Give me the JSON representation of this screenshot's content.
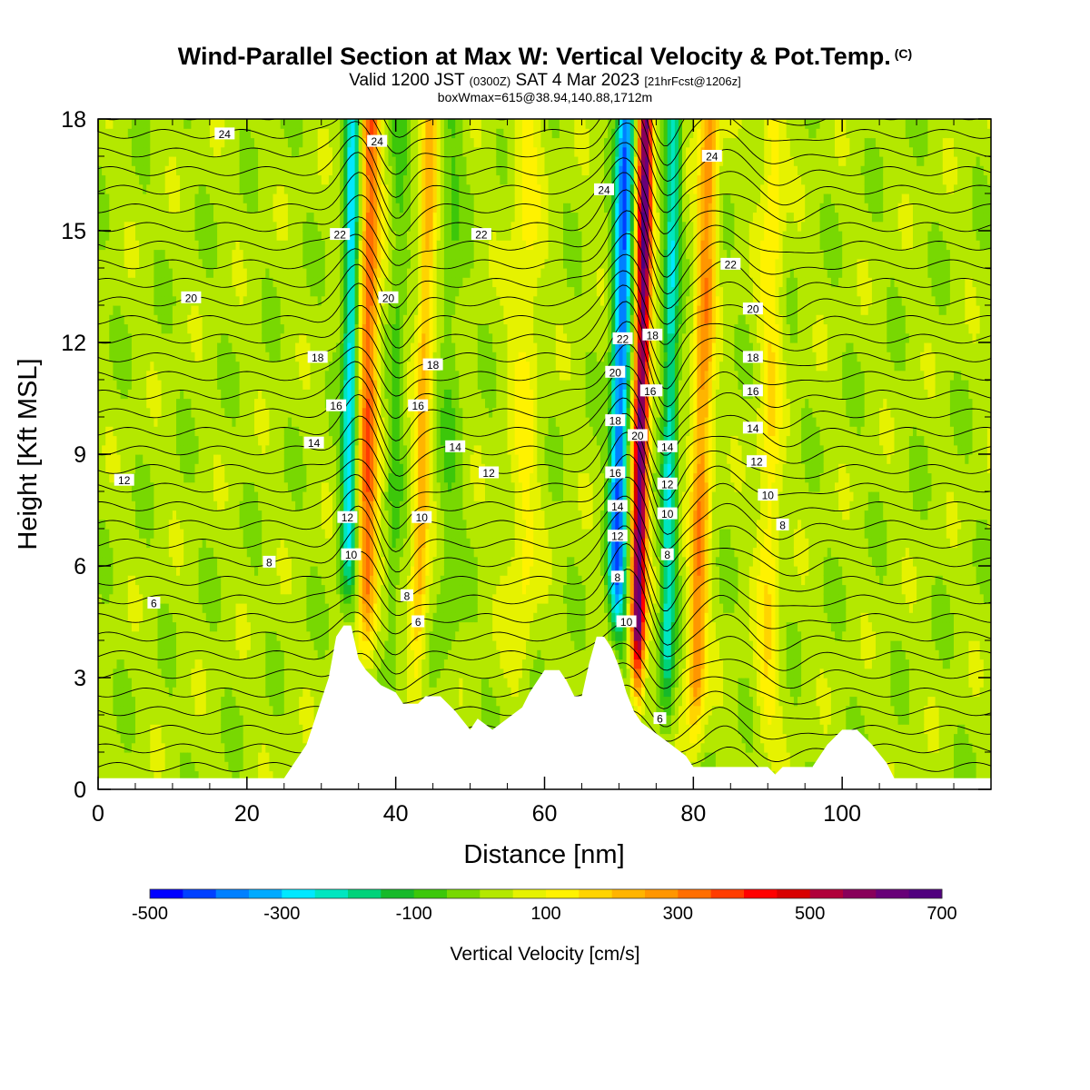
{
  "header": {
    "title": "Wind-Parallel Section at Max W: Vertical Velocity & Pot.Temp.",
    "copyright": "(C)",
    "valid_prefix": "Valid 1200 JST",
    "valid_utc": "(0300Z)",
    "valid_date": "SAT 4 Mar 2023",
    "forecast": "[21hrFcst@1206z]",
    "box": "boxWmax=615@38.94,140.88,1712m"
  },
  "chart_data": {
    "type": "heatmap",
    "xlabel": "Distance [nm]",
    "ylabel": "Height [Kft MSL]",
    "xlim": [
      0,
      120
    ],
    "ylim": [
      0,
      18
    ],
    "x_ticks": [
      "0",
      "20",
      "40",
      "60",
      "80",
      "100"
    ],
    "y_ticks": [
      "0",
      "3",
      "6",
      "9",
      "12",
      "15",
      "18"
    ],
    "colorbar": {
      "label": "Vertical Velocity [cm/s]",
      "min": -500,
      "max": 700,
      "step": 50,
      "tick_labels": [
        "-500",
        "-300",
        "-100",
        "100",
        "300",
        "500",
        "700"
      ],
      "colors": [
        "#0000ff",
        "#0040ff",
        "#0080ff",
        "#00aaff",
        "#00e8ff",
        "#00e6c0",
        "#00d27a",
        "#16b92a",
        "#3cc70a",
        "#78d802",
        "#b4e800",
        "#e6f200",
        "#fff200",
        "#ffd400",
        "#ffb400",
        "#ff9600",
        "#ff6e00",
        "#ff3c00",
        "#ff0000",
        "#d80000",
        "#b0003a",
        "#88005a",
        "#680078",
        "#50007e"
      ]
    },
    "terrain_kft": [
      [
        0,
        0.3
      ],
      [
        5,
        0.3
      ],
      [
        10,
        0.3
      ],
      [
        15,
        0.3
      ],
      [
        20,
        0.3
      ],
      [
        25,
        0.3
      ],
      [
        26,
        0.6
      ],
      [
        27,
        0.9
      ],
      [
        28,
        1.2
      ],
      [
        29,
        1.8
      ],
      [
        30,
        2.4
      ],
      [
        31,
        3.0
      ],
      [
        32,
        4.1
      ],
      [
        33,
        4.4
      ],
      [
        34,
        4.4
      ],
      [
        35,
        3.5
      ],
      [
        36,
        3.2
      ],
      [
        37,
        3.0
      ],
      [
        38,
        2.8
      ],
      [
        39,
        2.7
      ],
      [
        40,
        2.6
      ],
      [
        41,
        2.3
      ],
      [
        43,
        2.3
      ],
      [
        44,
        2.5
      ],
      [
        46,
        2.5
      ],
      [
        48,
        2.1
      ],
      [
        50,
        1.6
      ],
      [
        51,
        1.9
      ],
      [
        53,
        1.6
      ],
      [
        55,
        1.9
      ],
      [
        57,
        2.2
      ],
      [
        58,
        2.6
      ],
      [
        60,
        3.2
      ],
      [
        62,
        3.2
      ],
      [
        63,
        2.9
      ],
      [
        64,
        2.5
      ],
      [
        65,
        2.5
      ],
      [
        66,
        3.4
      ],
      [
        67,
        4.1
      ],
      [
        68,
        4.1
      ],
      [
        69,
        3.8
      ],
      [
        70,
        3.3
      ],
      [
        71,
        2.6
      ],
      [
        72,
        2.1
      ],
      [
        73,
        1.8
      ],
      [
        75,
        1.5
      ],
      [
        77,
        1.2
      ],
      [
        79,
        0.9
      ],
      [
        80,
        0.6
      ],
      [
        85,
        0.6
      ],
      [
        90,
        0.6
      ],
      [
        91,
        0.4
      ],
      [
        92,
        0.6
      ],
      [
        96,
        0.6
      ],
      [
        98,
        1.2
      ],
      [
        100,
        1.6
      ],
      [
        102,
        1.6
      ],
      [
        104,
        1.2
      ],
      [
        106,
        0.7
      ],
      [
        107,
        0.3
      ],
      [
        112,
        0.3
      ],
      [
        120,
        0.3
      ]
    ],
    "updraft_bands": [
      {
        "x_base": 36,
        "lean": 0.05,
        "half_width": 1.3,
        "peak_cm_s": 320
      },
      {
        "x_base": 43,
        "lean": 0.12,
        "half_width": 1.1,
        "peak_cm_s": 200
      },
      {
        "x_base": 72.5,
        "lean": 0.08,
        "half_width": 1.0,
        "peak_cm_s": 615
      },
      {
        "x_base": 80.5,
        "lean": 0.12,
        "half_width": 1.3,
        "peak_cm_s": 260
      },
      {
        "x_base": 90,
        "lean": 0.05,
        "half_width": 1.5,
        "peak_cm_s": 120
      },
      {
        "x_base": 57,
        "lean": 0.05,
        "half_width": 2.0,
        "peak_cm_s": 90
      }
    ],
    "downdraft_bands": [
      {
        "x_base": 33.5,
        "lean": 0.05,
        "half_width": 1.0,
        "peak_cm_s": -300
      },
      {
        "x_base": 69.5,
        "lean": 0.1,
        "half_width": 1.2,
        "peak_cm_s": -420
      },
      {
        "x_base": 76.5,
        "lean": 0.06,
        "half_width": 1.0,
        "peak_cm_s": -250
      },
      {
        "x_base": 39.5,
        "lean": 0.08,
        "half_width": 1.0,
        "peak_cm_s": -80
      },
      {
        "x_base": 47,
        "lean": 0.05,
        "half_width": 1.5,
        "peak_cm_s": -60
      }
    ],
    "theta_contour_labels": [
      {
        "text": "24",
        "x": 17,
        "y": 17.6
      },
      {
        "text": "24",
        "x": 37.5,
        "y": 17.4
      },
      {
        "text": "24",
        "x": 68,
        "y": 16.1
      },
      {
        "text": "24",
        "x": 82.5,
        "y": 17.0
      },
      {
        "text": "22",
        "x": 32.5,
        "y": 14.9
      },
      {
        "text": "22",
        "x": 51.5,
        "y": 14.9
      },
      {
        "text": "22",
        "x": 85,
        "y": 14.1
      },
      {
        "text": "20",
        "x": 12.5,
        "y": 13.2
      },
      {
        "text": "20",
        "x": 39,
        "y": 13.2
      },
      {
        "text": "20",
        "x": 88,
        "y": 12.9
      },
      {
        "text": "18",
        "x": 29.5,
        "y": 11.6
      },
      {
        "text": "18",
        "x": 45,
        "y": 11.4
      },
      {
        "text": "18",
        "x": 88,
        "y": 11.6
      },
      {
        "text": "18",
        "x": 74.5,
        "y": 12.2
      },
      {
        "text": "16",
        "x": 32,
        "y": 10.3
      },
      {
        "text": "16",
        "x": 43,
        "y": 10.3
      },
      {
        "text": "16",
        "x": 88,
        "y": 10.7
      },
      {
        "text": "16",
        "x": 74.5,
        "y": 10.7
      },
      {
        "text": "14",
        "x": 29,
        "y": 9.3
      },
      {
        "text": "14",
        "x": 48,
        "y": 9.2
      },
      {
        "text": "14",
        "x": 88,
        "y": 9.7
      },
      {
        "text": "14",
        "x": 76.5,
        "y": 9.2
      },
      {
        "text": "12",
        "x": 3.5,
        "y": 8.3
      },
      {
        "text": "12",
        "x": 52.5,
        "y": 8.5
      },
      {
        "text": "12",
        "x": 33.5,
        "y": 7.3
      },
      {
        "text": "12",
        "x": 88.5,
        "y": 8.8
      },
      {
        "text": "12",
        "x": 76.5,
        "y": 8.2
      },
      {
        "text": "10",
        "x": 34,
        "y": 6.3
      },
      {
        "text": "10",
        "x": 43.5,
        "y": 7.3
      },
      {
        "text": "10",
        "x": 90,
        "y": 7.9
      },
      {
        "text": "10",
        "x": 76.5,
        "y": 7.4
      },
      {
        "text": "8",
        "x": 23,
        "y": 6.1
      },
      {
        "text": "8",
        "x": 41.5,
        "y": 5.2
      },
      {
        "text": "8",
        "x": 92,
        "y": 7.1
      },
      {
        "text": "8",
        "x": 76.5,
        "y": 6.3
      },
      {
        "text": "6",
        "x": 7.5,
        "y": 5.0
      },
      {
        "text": "6",
        "x": 43,
        "y": 4.5
      },
      {
        "text": "6",
        "x": 75.5,
        "y": 1.9
      },
      {
        "text": "22",
        "x": 70.5,
        "y": 12.1
      },
      {
        "text": "20",
        "x": 69.5,
        "y": 11.2
      },
      {
        "text": "18",
        "x": 69.5,
        "y": 9.9
      },
      {
        "text": "16",
        "x": 69.5,
        "y": 8.5
      },
      {
        "text": "14",
        "x": 69.8,
        "y": 7.6
      },
      {
        "text": "12",
        "x": 69.8,
        "y": 6.8
      },
      {
        "text": "8",
        "x": 69.8,
        "y": 5.7
      },
      {
        "text": "10",
        "x": 71,
        "y": 4.5
      },
      {
        "text": "20",
        "x": 72.5,
        "y": 9.5
      },
      {
        "text": "16",
        "x": 74.2,
        "y": 10.7
      }
    ]
  }
}
